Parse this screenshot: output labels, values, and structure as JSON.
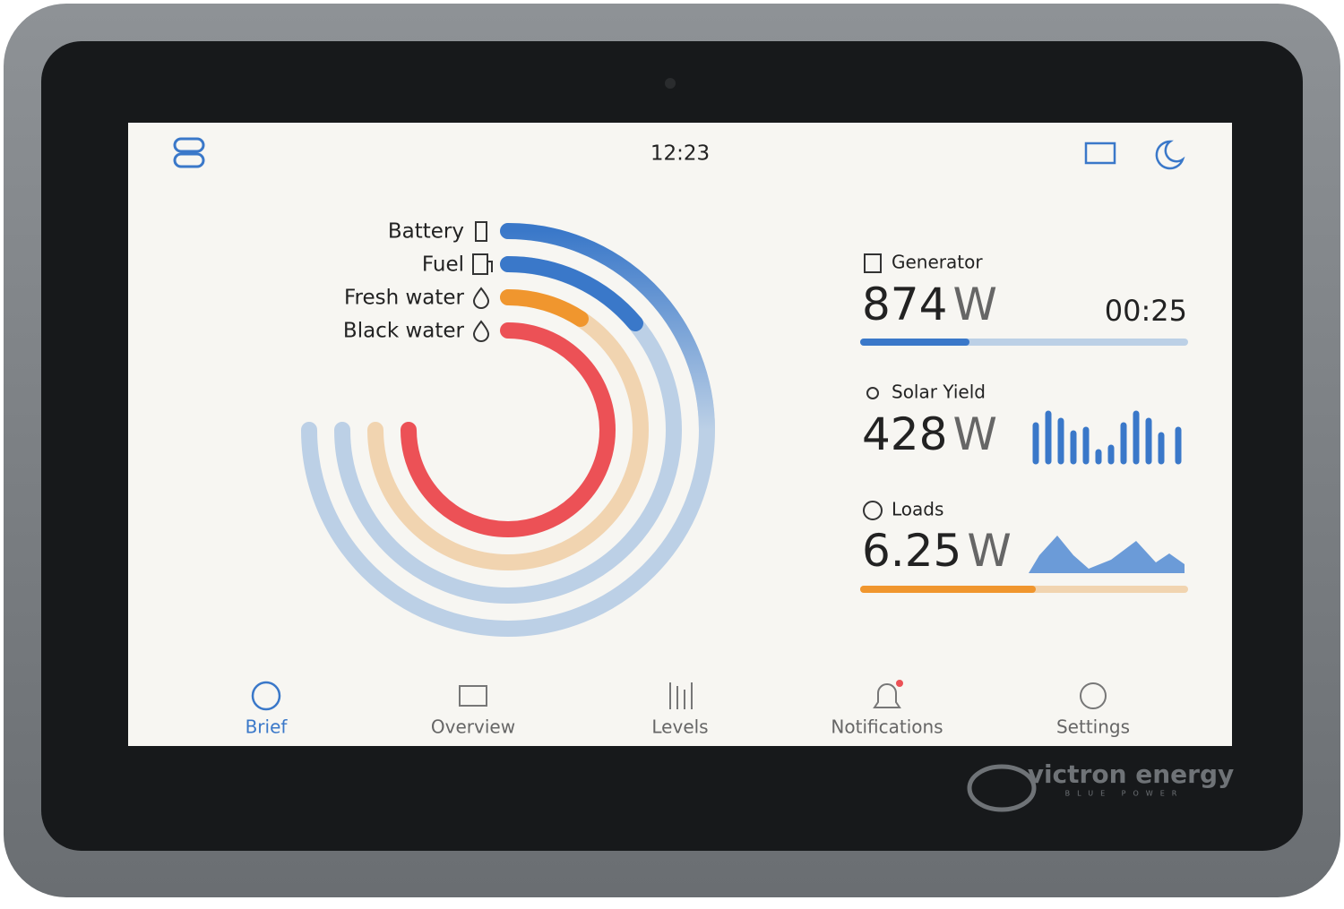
{
  "status_bar": {
    "time": "12:23"
  },
  "levels": {
    "items": [
      {
        "label": "Battery"
      },
      {
        "label": "Fuel"
      },
      {
        "label": "Fresh water"
      },
      {
        "label": "Black water"
      }
    ]
  },
  "generator": {
    "title": "Generator",
    "value": "874",
    "unit": "W",
    "runtime": "00:25"
  },
  "solar": {
    "title": "Solar Yield",
    "value": "428",
    "unit": "W"
  },
  "loads": {
    "title": "Loads",
    "value": "6.25",
    "unit": "W"
  },
  "nav": {
    "items": [
      {
        "label": "Brief"
      },
      {
        "label": "Overview"
      },
      {
        "label": "Levels"
      },
      {
        "label": "Notifications"
      },
      {
        "label": "Settings"
      }
    ]
  },
  "brand": {
    "name": "victron energy",
    "tagline": "BLUE POWER"
  }
}
